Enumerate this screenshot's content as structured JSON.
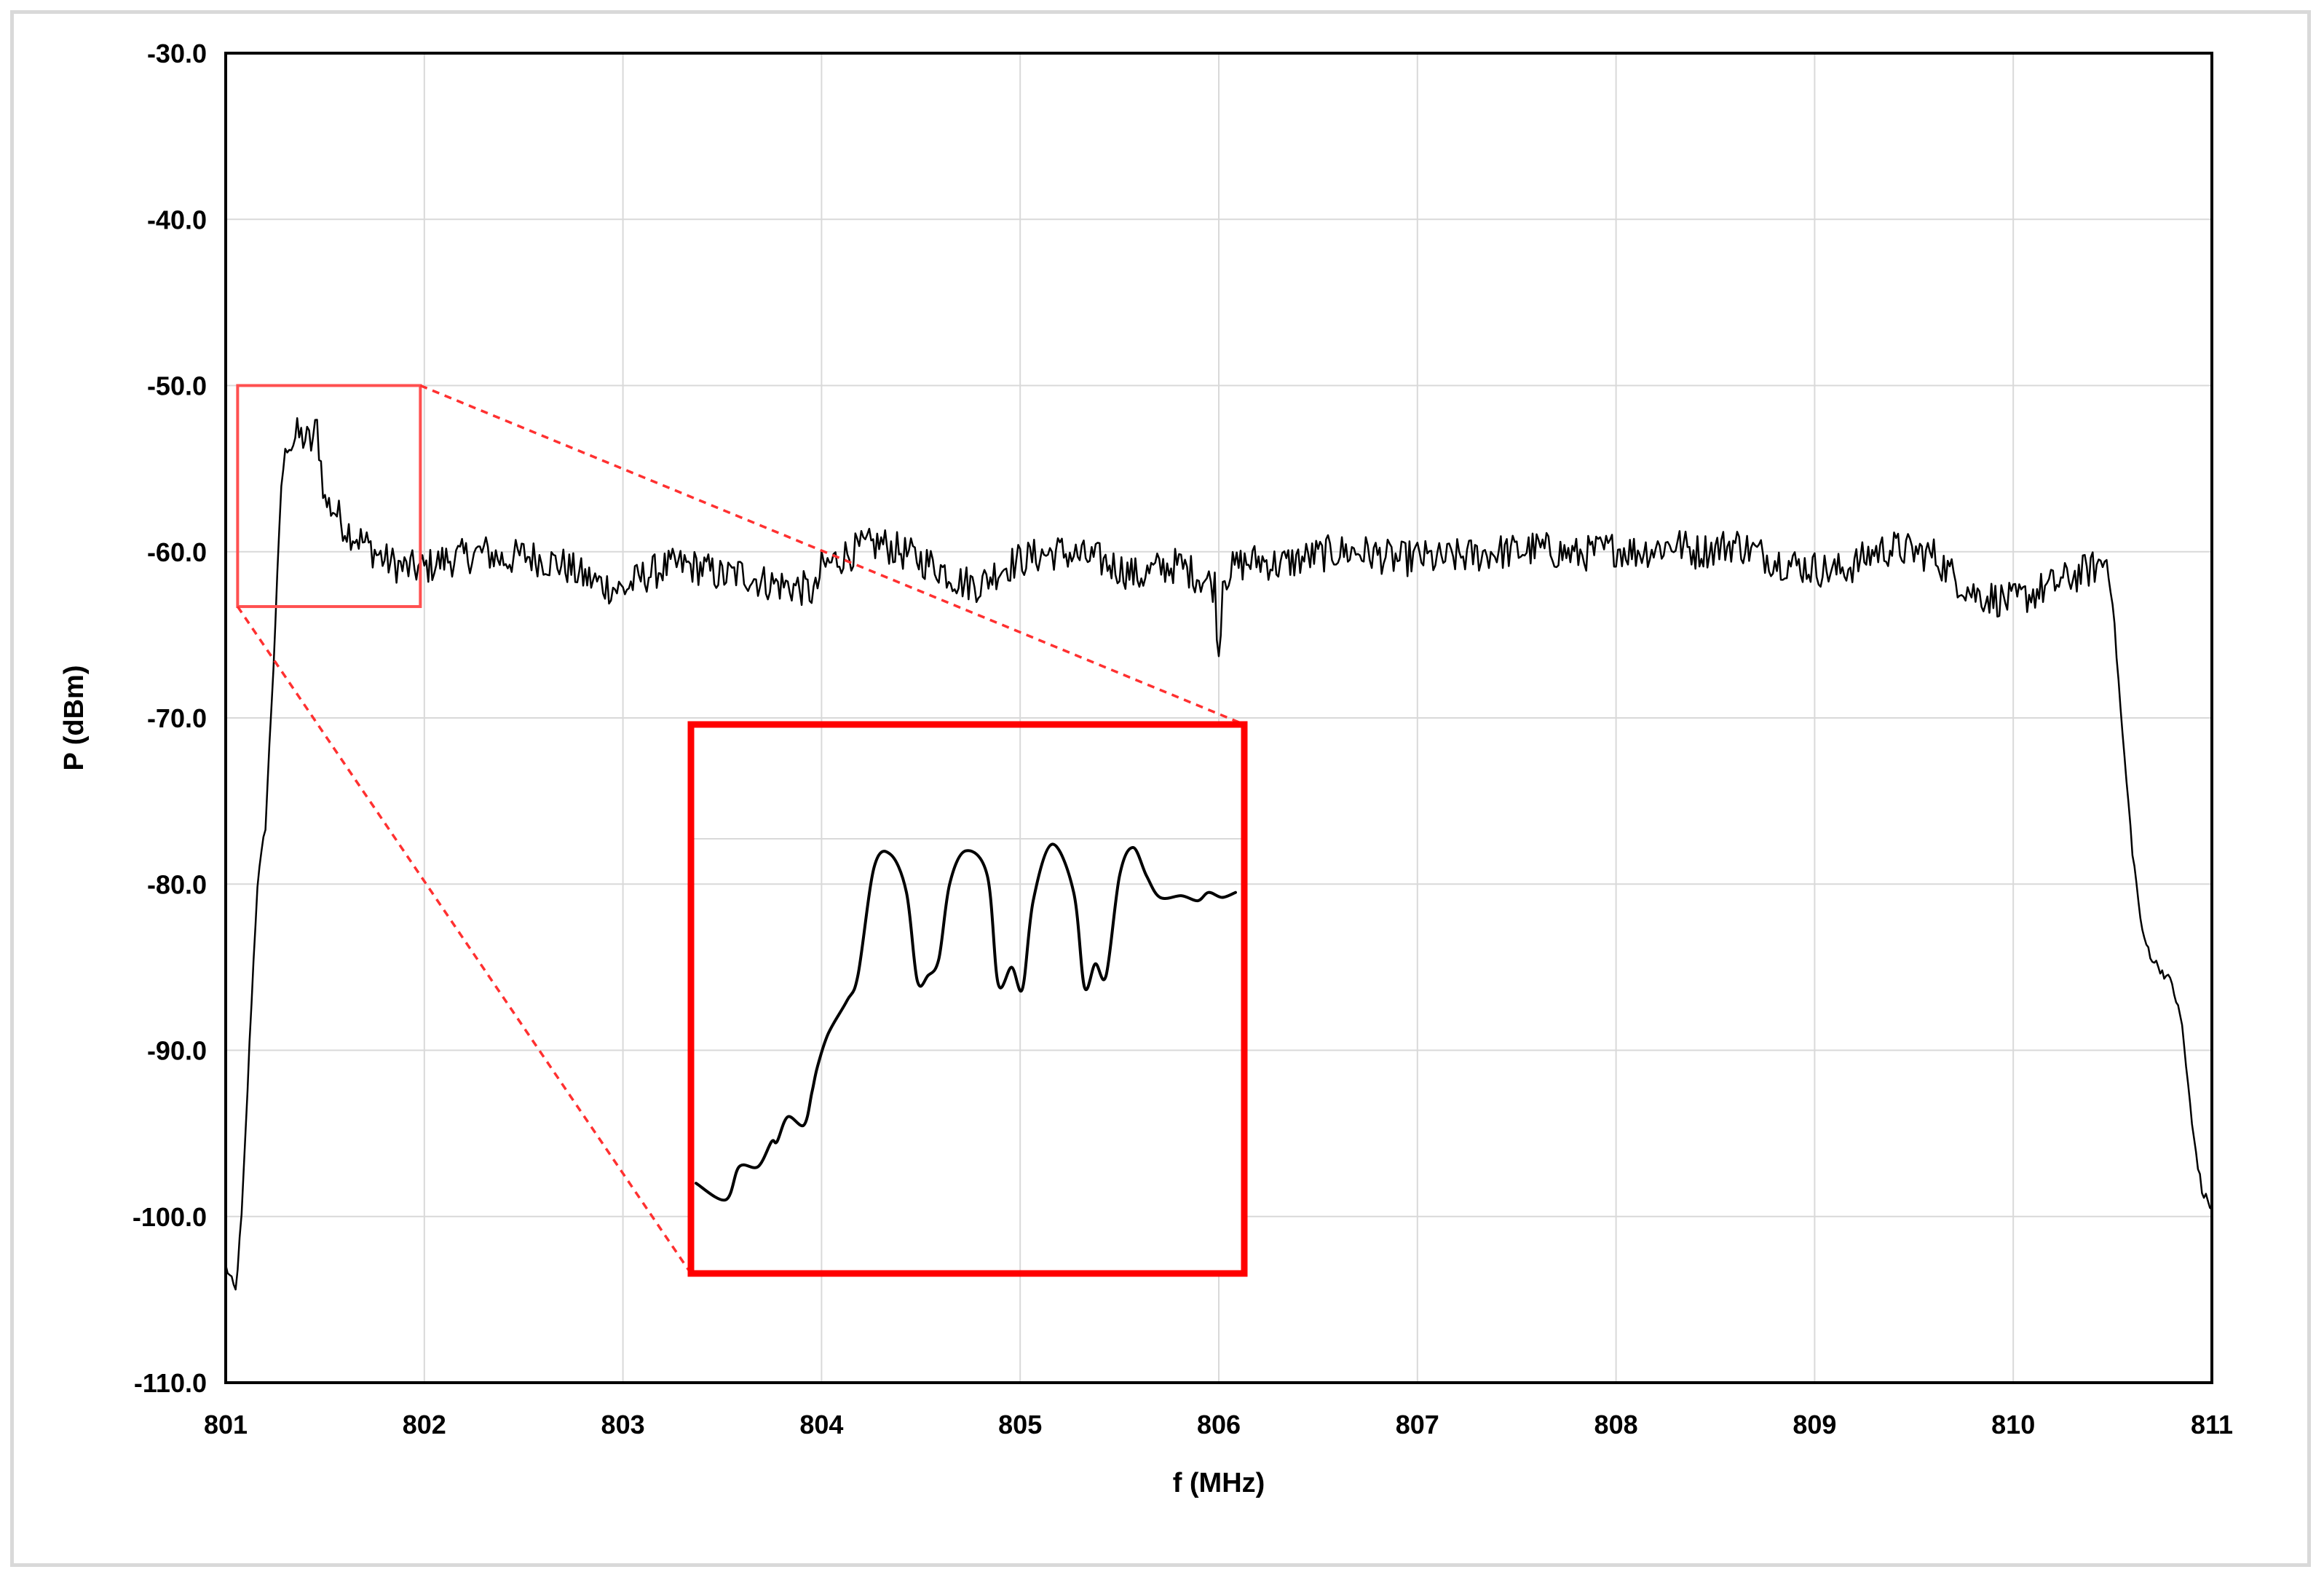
{
  "chart_data": {
    "type": "line",
    "title": "",
    "xlabel": "f (MHz)",
    "ylabel": "P (dBm)",
    "xlim": [
      801,
      811
    ],
    "ylim": [
      -110,
      -30
    ],
    "x_ticks": [
      "801",
      "802",
      "803",
      "804",
      "805",
      "806",
      "807",
      "808",
      "809",
      "810",
      "811"
    ],
    "y_ticks": [
      "-30.0",
      "-40.0",
      "-50.0",
      "-60.0",
      "-70.0",
      "-80.0",
      "-90.0",
      "-100.0",
      "-110.0"
    ],
    "grid": true,
    "legend": "none",
    "colors": {
      "line": "#000000",
      "zoom": "#ff0000",
      "zoom_light": "#ff5050",
      "grid": "#d9d9d9"
    },
    "series": [
      {
        "x": [
          801.0,
          801.05,
          801.08,
          801.1,
          801.13,
          801.16,
          801.2,
          801.24,
          801.28,
          801.3,
          801.33,
          801.36,
          801.4,
          801.43,
          801.46,
          801.5,
          801.55,
          801.6,
          801.7,
          801.8,
          801.9,
          802.0,
          802.1,
          802.2,
          802.3,
          802.4,
          802.5,
          802.6,
          802.7,
          802.8,
          802.9,
          803.0,
          803.1,
          803.2,
          803.3,
          803.4,
          803.5,
          803.6,
          803.7,
          803.8,
          803.9,
          803.97,
          804.0,
          804.1,
          804.2,
          804.3,
          804.4,
          804.5,
          804.6,
          804.7,
          804.8,
          804.9,
          805.0,
          805.1,
          805.2,
          805.3,
          805.4,
          805.5,
          805.6,
          805.7,
          805.8,
          805.9,
          805.98,
          806.0,
          806.02,
          806.1,
          806.2,
          806.3,
          806.4,
          806.5,
          806.6,
          806.7,
          806.8,
          806.9,
          807.0,
          807.1,
          807.2,
          807.3,
          807.4,
          807.5,
          807.6,
          807.7,
          807.8,
          807.9,
          808.0,
          808.1,
          808.2,
          808.3,
          808.4,
          808.5,
          808.6,
          808.7,
          808.8,
          808.9,
          809.0,
          809.1,
          809.2,
          809.3,
          809.4,
          809.5,
          809.6,
          809.7,
          809.8,
          809.9,
          810.0,
          810.1,
          810.2,
          810.3,
          810.4,
          810.47,
          810.5,
          810.55,
          810.6,
          810.65,
          810.7,
          810.8,
          810.85,
          810.9,
          810.95,
          811.0
        ],
        "values": [
          -103.0,
          -104.5,
          -100.0,
          -95.0,
          -87.0,
          -80.0,
          -76.5,
          -67.0,
          -56.0,
          -54.0,
          -53.5,
          -53.0,
          -53.2,
          -53.5,
          -52.5,
          -57.0,
          -57.5,
          -58.5,
          -59.5,
          -60.5,
          -61.0,
          -61.0,
          -60.5,
          -60.3,
          -60.0,
          -60.5,
          -60.2,
          -60.5,
          -60.8,
          -61.5,
          -62.0,
          -62.3,
          -61.5,
          -61.0,
          -60.8,
          -61.0,
          -61.5,
          -61.3,
          -61.8,
          -62.0,
          -62.2,
          -62.5,
          -61.0,
          -60.3,
          -59.8,
          -59.5,
          -60.0,
          -60.5,
          -61.0,
          -61.8,
          -62.0,
          -61.0,
          -60.5,
          -60.2,
          -60.0,
          -60.3,
          -60.5,
          -61.0,
          -61.5,
          -61.0,
          -60.8,
          -61.5,
          -62.0,
          -66.5,
          -61.5,
          -60.8,
          -60.5,
          -60.8,
          -60.5,
          -60.2,
          -60.0,
          -60.0,
          -60.2,
          -60.5,
          -60.3,
          -60.5,
          -60.3,
          -60.2,
          -60.0,
          -60.0,
          -59.8,
          -60.0,
          -60.2,
          -60.0,
          -59.8,
          -60.0,
          -59.8,
          -59.5,
          -60.0,
          -59.8,
          -59.5,
          -60.0,
          -60.5,
          -60.8,
          -61.0,
          -61.2,
          -60.8,
          -60.0,
          -59.8,
          -60.0,
          -60.2,
          -61.5,
          -62.5,
          -62.8,
          -63.0,
          -62.5,
          -62.0,
          -61.5,
          -61.0,
          -60.5,
          -63.0,
          -71.0,
          -78.0,
          -83.0,
          -84.5,
          -86.0,
          -88.5,
          -94.5,
          -98.5,
          -99.5
        ]
      }
    ],
    "zoom_box": {
      "x": [
        801.06,
        801.98
      ],
      "y": [
        -63.3,
        -50.0
      ]
    },
    "inset": {
      "x": [
        0.0,
        0.055,
        0.08,
        0.115,
        0.14,
        0.15,
        0.17,
        0.2,
        0.215,
        0.225,
        0.245,
        0.28,
        0.3,
        0.33,
        0.36,
        0.39,
        0.41,
        0.43,
        0.45,
        0.47,
        0.5,
        0.54,
        0.56,
        0.585,
        0.605,
        0.625,
        0.66,
        0.7,
        0.72,
        0.74,
        0.76,
        0.785,
        0.81,
        0.835,
        0.86,
        0.9,
        0.93,
        0.95,
        0.975,
        1.0
      ],
      "values": [
        -98.0,
        -99.0,
        -97.0,
        -97.0,
        -95.5,
        -95.5,
        -94.0,
        -94.5,
        -92.5,
        -91.0,
        -89.0,
        -87.0,
        -85.5,
        -79.0,
        -78.2,
        -80.5,
        -85.8,
        -85.5,
        -84.5,
        -80.0,
        -78.0,
        -79.5,
        -86.0,
        -85.0,
        -86.3,
        -81.0,
        -77.6,
        -80.5,
        -86.2,
        -84.8,
        -85.5,
        -79.5,
        -77.8,
        -79.5,
        -80.8,
        -80.7,
        -81.0,
        -80.5,
        -80.8,
        -80.5
      ]
    }
  }
}
